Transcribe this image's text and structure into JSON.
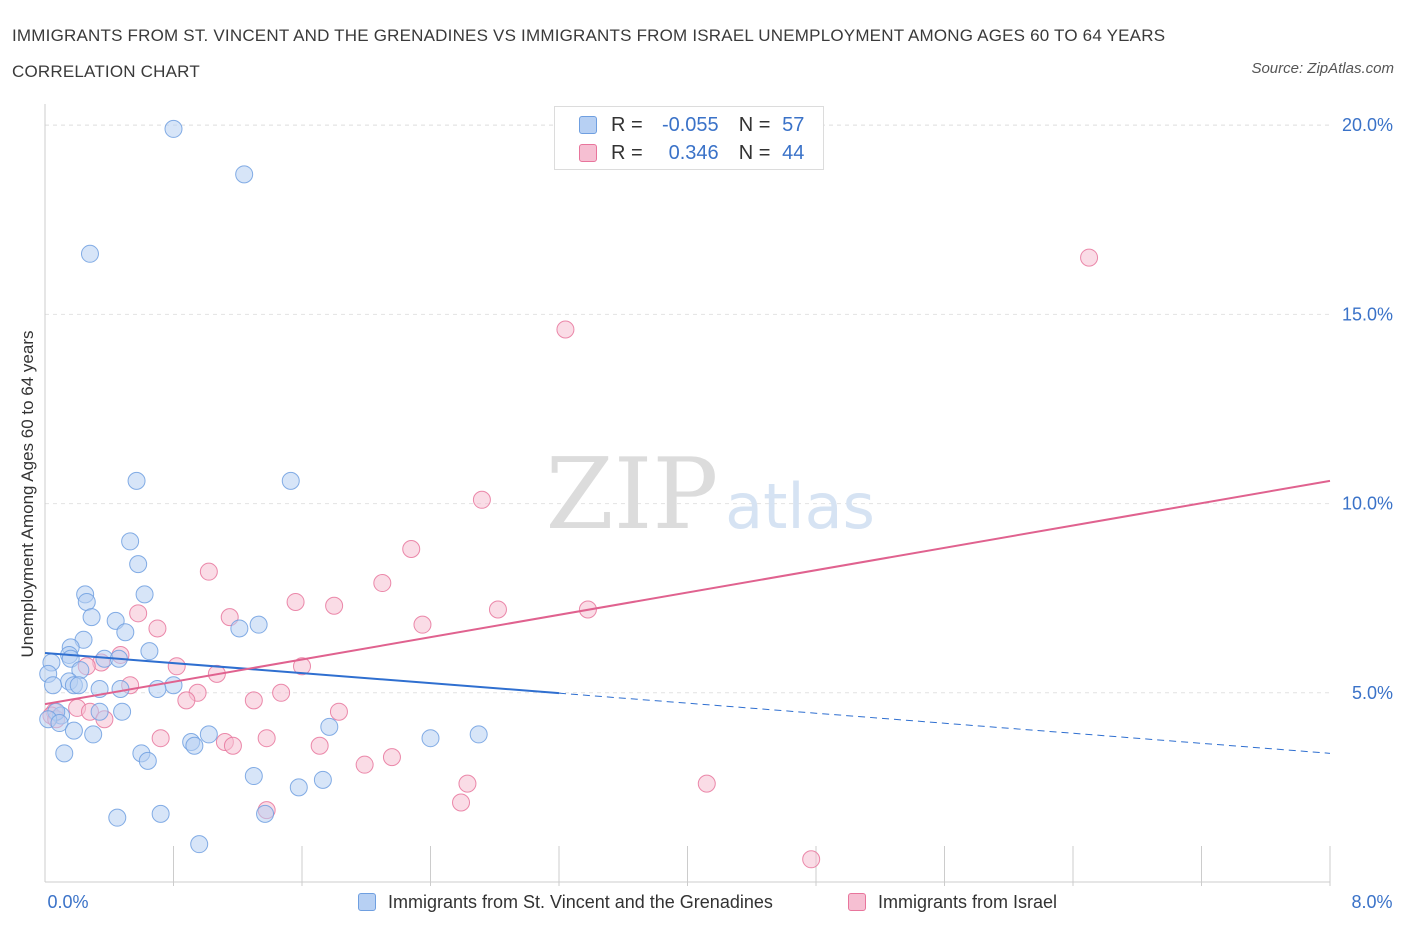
{
  "title": "IMMIGRANTS FROM ST. VINCENT AND THE GRENADINES VS IMMIGRANTS FROM ISRAEL UNEMPLOYMENT AMONG AGES 60 TO 64 YEARS CORRELATION CHART",
  "source": "Source: ZipAtlas.com",
  "watermark": {
    "zip": "ZIP",
    "atlas": "atlas"
  },
  "stats": [
    {
      "r_label": "R =",
      "r_value": "-0.055",
      "n_label": "N =",
      "n_value": "57"
    },
    {
      "r_label": "R =",
      "r_value": "0.346",
      "n_label": "N =",
      "n_value": "44"
    }
  ],
  "chart_data": {
    "type": "scatter",
    "title": "IMMIGRANTS FROM ST. VINCENT AND THE GRENADINES VS IMMIGRANTS FROM ISRAEL UNEMPLOYMENT AMONG AGES 60 TO 64 YEARS CORRELATION CHART",
    "xlabel": "",
    "ylabel": "Unemployment Among Ages 60 to 64 years",
    "xlim": [
      0,
      8
    ],
    "ylim": [
      0,
      20
    ],
    "x_tick_labels": [
      "0.0%",
      "8.0%"
    ],
    "y_ticks": [
      5,
      10,
      15,
      20
    ],
    "y_tick_labels": [
      "5.0%",
      "10.0%",
      "15.0%",
      "20.0%"
    ],
    "grid": true,
    "legend_position": "bottom",
    "series": [
      {
        "name": "Immigrants from St. Vincent and the Grenadines",
        "color": "#6f9fe0",
        "fill": "#b7d0f3",
        "trend": {
          "x0": 0,
          "y0": 6.05,
          "x_solid_end": 3.2,
          "x1": 8,
          "y1": 3.4
        },
        "points": [
          [
            0.8,
            19.9
          ],
          [
            1.24,
            18.7
          ],
          [
            0.28,
            16.6
          ],
          [
            0.57,
            10.6
          ],
          [
            1.53,
            10.6
          ],
          [
            0.53,
            9.0
          ],
          [
            0.58,
            8.4
          ],
          [
            0.25,
            7.6
          ],
          [
            0.62,
            7.6
          ],
          [
            0.26,
            7.4
          ],
          [
            0.29,
            7.0
          ],
          [
            0.44,
            6.9
          ],
          [
            1.33,
            6.8
          ],
          [
            1.21,
            6.7
          ],
          [
            0.5,
            6.6
          ],
          [
            0.65,
            6.1
          ],
          [
            0.24,
            6.4
          ],
          [
            0.16,
            6.2
          ],
          [
            0.15,
            6.0
          ],
          [
            0.16,
            5.9
          ],
          [
            0.37,
            5.9
          ],
          [
            0.46,
            5.9
          ],
          [
            0.04,
            5.8
          ],
          [
            0.22,
            5.6
          ],
          [
            0.02,
            5.5
          ],
          [
            0.15,
            5.3
          ],
          [
            0.05,
            5.2
          ],
          [
            0.18,
            5.2
          ],
          [
            0.21,
            5.2
          ],
          [
            0.8,
            5.2
          ],
          [
            0.34,
            5.1
          ],
          [
            0.47,
            5.1
          ],
          [
            0.7,
            5.1
          ],
          [
            0.1,
            4.4
          ],
          [
            0.07,
            4.5
          ],
          [
            0.02,
            4.3
          ],
          [
            0.09,
            4.2
          ],
          [
            0.34,
            4.5
          ],
          [
            0.48,
            4.5
          ],
          [
            0.18,
            4.0
          ],
          [
            0.3,
            3.9
          ],
          [
            1.02,
            3.9
          ],
          [
            0.91,
            3.7
          ],
          [
            0.93,
            3.6
          ],
          [
            1.77,
            4.1
          ],
          [
            2.4,
            3.8
          ],
          [
            2.7,
            3.9
          ],
          [
            0.12,
            3.4
          ],
          [
            0.6,
            3.4
          ],
          [
            0.64,
            3.2
          ],
          [
            1.3,
            2.8
          ],
          [
            1.73,
            2.7
          ],
          [
            1.58,
            2.5
          ],
          [
            0.45,
            1.7
          ],
          [
            0.72,
            1.8
          ],
          [
            1.37,
            1.8
          ],
          [
            0.96,
            1.0
          ]
        ]
      },
      {
        "name": "Immigrants from Israel",
        "color": "#e8759c",
        "fill": "#f6bfd2",
        "trend": {
          "x0": 0,
          "y0": 4.7,
          "x1": 8,
          "y1": 10.6
        },
        "points": [
          [
            6.5,
            16.5
          ],
          [
            3.24,
            14.6
          ],
          [
            2.72,
            10.1
          ],
          [
            2.28,
            8.8
          ],
          [
            1.02,
            8.2
          ],
          [
            2.1,
            7.9
          ],
          [
            1.56,
            7.4
          ],
          [
            1.8,
            7.3
          ],
          [
            3.38,
            7.2
          ],
          [
            2.82,
            7.2
          ],
          [
            0.58,
            7.1
          ],
          [
            1.15,
            7.0
          ],
          [
            2.35,
            6.8
          ],
          [
            0.7,
            6.7
          ],
          [
            0.47,
            6.0
          ],
          [
            0.35,
            5.8
          ],
          [
            0.26,
            5.7
          ],
          [
            0.82,
            5.7
          ],
          [
            1.6,
            5.7
          ],
          [
            1.07,
            5.5
          ],
          [
            0.53,
            5.2
          ],
          [
            1.47,
            5.0
          ],
          [
            0.95,
            5.0
          ],
          [
            0.88,
            4.8
          ],
          [
            1.3,
            4.8
          ],
          [
            0.2,
            4.6
          ],
          [
            0.06,
            4.5
          ],
          [
            0.28,
            4.5
          ],
          [
            0.04,
            4.4
          ],
          [
            1.83,
            4.5
          ],
          [
            0.37,
            4.3
          ],
          [
            0.72,
            3.8
          ],
          [
            1.12,
            3.7
          ],
          [
            1.38,
            3.8
          ],
          [
            1.17,
            3.6
          ],
          [
            1.71,
            3.6
          ],
          [
            2.16,
            3.3
          ],
          [
            1.99,
            3.1
          ],
          [
            0.07,
            4.3
          ],
          [
            2.63,
            2.6
          ],
          [
            4.12,
            2.6
          ],
          [
            2.59,
            2.1
          ],
          [
            1.38,
            1.9
          ],
          [
            4.77,
            0.6
          ]
        ]
      }
    ]
  }
}
